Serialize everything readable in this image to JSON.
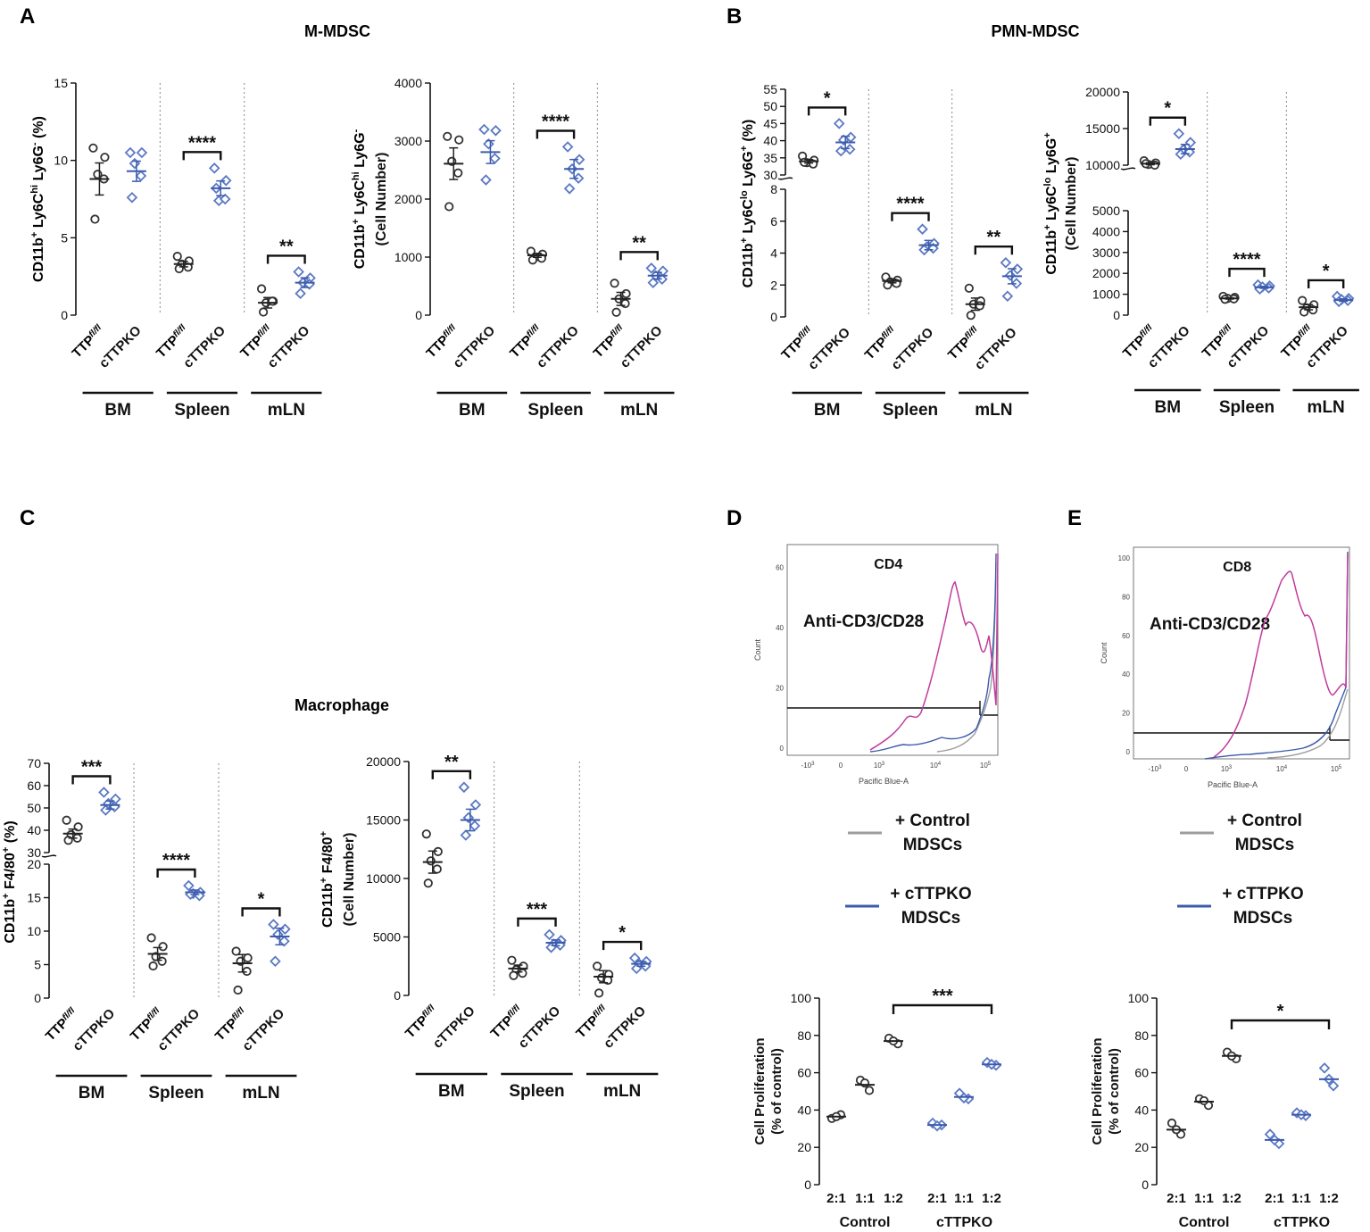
{
  "panel_letters": {
    "A": "A",
    "B": "B",
    "C": "C",
    "D": "D",
    "E": "E"
  },
  "section_titles": {
    "mmdsc": "M-MDSC",
    "pmn": "PMN-MDSC",
    "macro": "Macrophage"
  },
  "colors": {
    "control": "#333333",
    "ko": "#3b5bab",
    "ko_marker": "#5a78c4",
    "flow_pink": "#c23b9c",
    "flow_grey": "#9e9e9e",
    "flow_blue": "#3b5bab"
  },
  "groups": [
    "BM",
    "Spleen",
    "mLN"
  ],
  "genotypes": {
    "ttp": "TTP",
    "ttp_sup": "fl/fl",
    "ko": "cTTPKO"
  },
  "chart_data": [
    {
      "id": "mmdsc_pct",
      "type": "scatter",
      "ylabel": "CD11b+ Ly6Chi Ly6G- (%)",
      "ylim": [
        0,
        15
      ],
      "yticks": [
        "0",
        "5",
        "10",
        "15"
      ],
      "groups": [
        {
          "name": "BM",
          "ttp": [
            10.8,
            10.2,
            9.1,
            8.8,
            6.2
          ],
          "ko": [
            10.5,
            10.5,
            9.8,
            9.0,
            7.6
          ],
          "mean_ttp": 8.8,
          "mean_ko": 9.3,
          "sig": ""
        },
        {
          "name": "Spleen",
          "ttp": [
            3.8,
            3.5,
            3.3,
            3.1,
            3.0
          ],
          "ko": [
            9.5,
            8.7,
            7.4,
            7.5,
            8.2
          ],
          "mean_ttp": 3.3,
          "mean_ko": 8.2,
          "sig": "****"
        },
        {
          "name": "mLN",
          "ttp": [
            1.7,
            0.9,
            0.8,
            0.9,
            0.2
          ],
          "ko": [
            2.8,
            2.4,
            2.1,
            2.0,
            1.4
          ],
          "mean_ttp": 0.8,
          "mean_ko": 2.1,
          "sig": "**"
        }
      ]
    },
    {
      "id": "mmdsc_num",
      "type": "scatter",
      "ylabel": "CD11b+ Ly6Chi Ly6G- (Cell Number)",
      "ylim": [
        0,
        4000
      ],
      "yticks": [
        "0",
        "1000",
        "2000",
        "3000",
        "4000"
      ],
      "groups": [
        {
          "name": "BM",
          "ttp": [
            3080,
            3020,
            2650,
            2450,
            1870
          ],
          "ko": [
            3200,
            3180,
            2950,
            2700,
            2330
          ],
          "mean_ttp": 2610,
          "mean_ko": 2810,
          "sig": ""
        },
        {
          "name": "Spleen",
          "ttp": [
            1100,
            1050,
            1000,
            980,
            950
          ],
          "ko": [
            2900,
            2680,
            2520,
            2360,
            2180
          ],
          "mean_ttp": 1030,
          "mean_ko": 2520,
          "sig": "****"
        },
        {
          "name": "mLN",
          "ttp": [
            550,
            370,
            280,
            200,
            50
          ],
          "ko": [
            810,
            760,
            680,
            620,
            560
          ],
          "mean_ttp": 280,
          "mean_ko": 680,
          "sig": "**"
        }
      ]
    },
    {
      "id": "pmn_pct",
      "type": "scatter",
      "ylabel": "CD11b+ Ly6Clo Ly6G+ (%)",
      "upper_ticks": [
        "30",
        "35",
        "40",
        "45",
        "50",
        "55"
      ],
      "upper_range": [
        30,
        55
      ],
      "lower_ticks": [
        "0",
        "2",
        "4",
        "6",
        "8"
      ],
      "lower_range": [
        0,
        8
      ],
      "groups": [
        {
          "name": "BM",
          "ttp": [
            35.5,
            34.3,
            33.6,
            33.2,
            33.7
          ],
          "ko": [
            45.0,
            41.0,
            40.2,
            37.5,
            37.0
          ],
          "mean_ttp": 34.0,
          "mean_ko": 39.5,
          "sig": "*"
        },
        {
          "name": "Spleen",
          "ttp": [
            2.5,
            2.3,
            2.2,
            2.1,
            2.0
          ],
          "ko": [
            5.5,
            4.6,
            4.4,
            4.3,
            4.2
          ],
          "mean_ttp": 2.25,
          "mean_ko": 4.5,
          "sig": "****"
        },
        {
          "name": "mLN",
          "ttp": [
            1.8,
            1.0,
            0.8,
            0.7,
            0.1
          ],
          "ko": [
            3.4,
            3.0,
            2.6,
            2.1,
            1.3
          ],
          "mean_ttp": 0.8,
          "mean_ko": 2.55,
          "sig": "**"
        }
      ]
    },
    {
      "id": "pmn_num",
      "type": "scatter",
      "ylabel": "CD11b+ Ly6Clo Ly6G+ (Cell Number)",
      "upper_ticks": [
        "10000",
        "15000",
        "20000"
      ],
      "upper_range": [
        10000,
        20000
      ],
      "lower_ticks": [
        "0",
        "1000",
        "2000",
        "3000",
        "4000",
        "5000"
      ],
      "lower_range": [
        0,
        5000
      ],
      "groups": [
        {
          "name": "BM",
          "ttp": [
            10600,
            10300,
            10100,
            10000,
            10200
          ],
          "ko": [
            14300,
            13100,
            12100,
            11800,
            11500
          ],
          "mean_ttp": 10200,
          "mean_ko": 12200,
          "sig": "*"
        },
        {
          "name": "Spleen",
          "ttp": [
            900,
            850,
            800,
            780,
            760
          ],
          "ko": [
            1450,
            1400,
            1350,
            1300,
            1250
          ],
          "mean_ttp": 800,
          "mean_ko": 1330,
          "sig": "****"
        },
        {
          "name": "mLN",
          "ttp": [
            700,
            500,
            350,
            250,
            150
          ],
          "ko": [
            900,
            800,
            750,
            700,
            650
          ],
          "mean_ttp": 380,
          "mean_ko": 720,
          "sig": "*"
        }
      ]
    },
    {
      "id": "macro_pct",
      "type": "scatter",
      "ylabel": "CD11b+ F4/80+ (%)",
      "upper_ticks": [
        "30",
        "40",
        "50",
        "60",
        "70"
      ],
      "upper_range": [
        30,
        70
      ],
      "lower_ticks": [
        "0",
        "5",
        "10",
        "15",
        "20"
      ],
      "lower_range": [
        0,
        20
      ],
      "groups": [
        {
          "name": "BM",
          "ttp": [
            44.5,
            41.5,
            38.0,
            36.5,
            35.5
          ],
          "ko": [
            57.0,
            54.0,
            52.0,
            50.5,
            49.0
          ],
          "mean_ttp": 38.5,
          "mean_ko": 51.3,
          "sig": "***"
        },
        {
          "name": "Spleen",
          "ttp": [
            9.0,
            7.7,
            6.2,
            5.5,
            4.8
          ],
          "ko": [
            16.8,
            15.8,
            15.6,
            15.3,
            15.5
          ],
          "mean_ttp": 6.6,
          "mean_ko": 15.8,
          "sig": "****"
        },
        {
          "name": "mLN",
          "ttp": [
            7.0,
            6.0,
            5.5,
            4.0,
            1.2
          ],
          "ko": [
            11.0,
            10.3,
            9.5,
            8.5,
            5.5
          ],
          "mean_ttp": 5.2,
          "mean_ko": 9.2,
          "sig": "*"
        }
      ]
    },
    {
      "id": "macro_num",
      "type": "scatter",
      "ylabel": "CD11b+ F4/80+ (Cell Number)",
      "ylim": [
        0,
        20000
      ],
      "yticks": [
        "0",
        "5000",
        "10000",
        "15000",
        "20000"
      ],
      "groups": [
        {
          "name": "BM",
          "ttp": [
            13800,
            12300,
            11500,
            10800,
            9600
          ],
          "ko": [
            17800,
            16300,
            15200,
            14500,
            13700
          ],
          "mean_ttp": 11400,
          "mean_ko": 15000,
          "sig": "**"
        },
        {
          "name": "Spleen",
          "ttp": [
            3000,
            2500,
            2200,
            1900,
            1700
          ],
          "ko": [
            5200,
            4700,
            4400,
            4300,
            4100
          ],
          "mean_ttp": 2300,
          "mean_ko": 4500,
          "sig": "***"
        },
        {
          "name": "mLN",
          "ttp": [
            2500,
            1800,
            1500,
            1300,
            200
          ],
          "ko": [
            3200,
            2900,
            2700,
            2500,
            2300
          ],
          "mean_ttp": 1600,
          "mean_ko": 2700,
          "sig": "*"
        }
      ]
    },
    {
      "id": "prolif_cd4",
      "type": "scatter",
      "ylabel": "Cell Proliferation (% of control)",
      "ylim": [
        0,
        100
      ],
      "yticks": [
        "0",
        "20",
        "40",
        "60",
        "80",
        "100"
      ],
      "categories": [
        "2:1",
        "1:1",
        "1:2"
      ],
      "series": [
        {
          "name": "Control",
          "points": [
            [
              35.5,
              37.5,
              36.5
            ],
            [
              56,
              50.5,
              54.5
            ],
            [
              78.5,
              75.5,
              77
            ]
          ],
          "means": [
            36.5,
            53.5,
            77
          ]
        },
        {
          "name": "cTTPKO",
          "points": [
            [
              33,
              32,
              31.5
            ],
            [
              49,
              46,
              46.5
            ],
            [
              65.5,
              64,
              64.5
            ]
          ],
          "means": [
            32,
            47,
            64.5
          ]
        }
      ],
      "sig": "***"
    },
    {
      "id": "prolif_cd8",
      "type": "scatter",
      "ylabel": "Cell Proliferation (% of control)",
      "ylim": [
        0,
        100
      ],
      "yticks": [
        "0",
        "20",
        "40",
        "60",
        "80",
        "100"
      ],
      "categories": [
        "2:1",
        "1:1",
        "1:2"
      ],
      "series": [
        {
          "name": "Control",
          "points": [
            [
              33,
              27,
              29.5
            ],
            [
              46,
              42.5,
              45
            ],
            [
              71,
              67.5,
              69
            ]
          ],
          "means": [
            29.5,
            44.5,
            69
          ]
        },
        {
          "name": "cTTPKO",
          "points": [
            [
              27,
              22,
              24
            ],
            [
              38.5,
              37,
              37.5
            ],
            [
              62.5,
              53,
              56.5
            ]
          ],
          "means": [
            24,
            37.5,
            56.5
          ]
        }
      ],
      "sig": "*"
    }
  ],
  "flow": {
    "cd4": {
      "marker": "CD4",
      "stim": "Anti-CD3/CD28",
      "ylabel": "Count",
      "xlabel": "Pacific Blue-A",
      "yticks": [
        "0",
        "20",
        "40",
        "60"
      ],
      "xticks": [
        "-10",
        "0",
        "10",
        "10",
        "10"
      ],
      "xsups": [
        "3",
        "",
        "3",
        "4",
        "5"
      ]
    },
    "cd8": {
      "marker": "CD8",
      "stim": "Anti-CD3/CD28",
      "ylabel": "Count",
      "xlabel": "Pacific Blue-A",
      "yticks": [
        "0",
        "20",
        "40",
        "60",
        "80",
        "100"
      ],
      "xticks": [
        "-10",
        "0",
        "10",
        "10",
        "10"
      ],
      "xsups": [
        "3",
        "",
        "3",
        "4",
        "5"
      ]
    }
  },
  "legend": {
    "control_l1": "+ Control",
    "control_l2": "MDSCs",
    "ko_l1": "+ cTTPKO",
    "ko_l2": "MDSCs"
  },
  "prolif_groups": [
    "Control",
    "cTTPKO"
  ]
}
